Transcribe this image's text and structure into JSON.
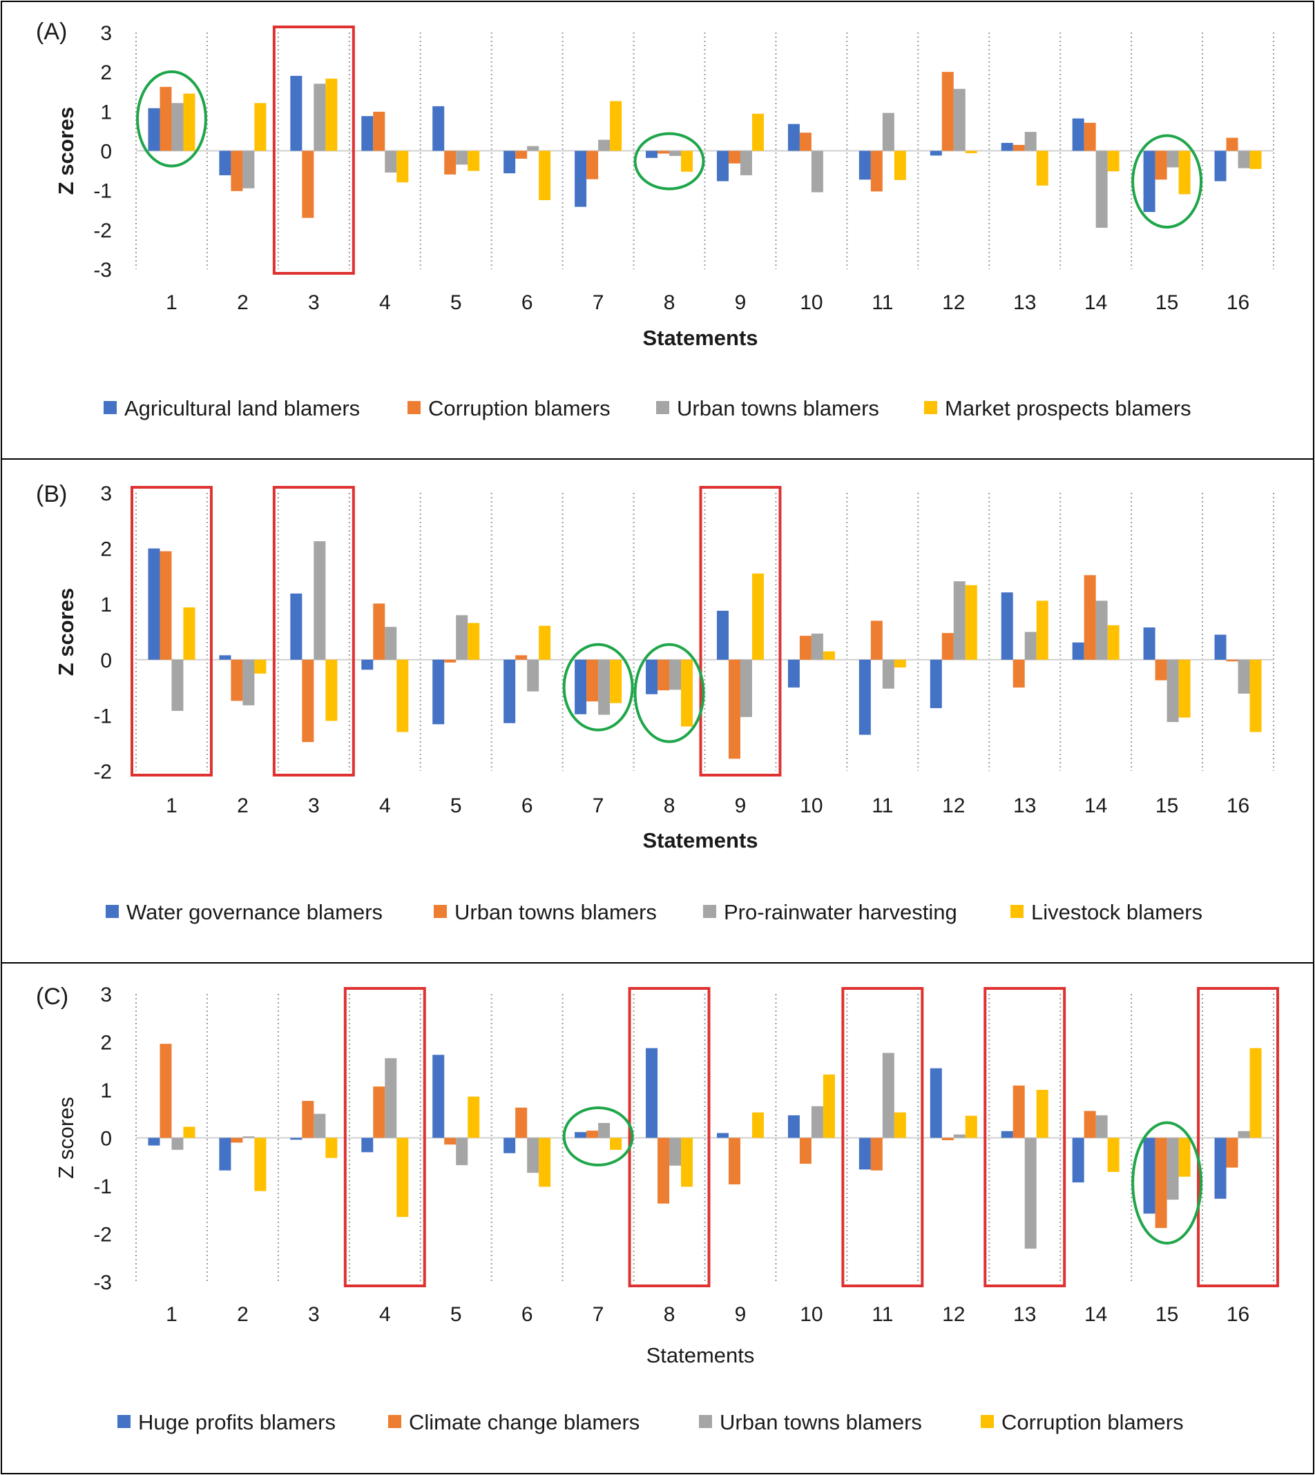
{
  "colors": {
    "series": [
      "#4472C4",
      "#ED7D31",
      "#A5A5A5",
      "#FFC000"
    ],
    "highlight_box": "#E03131",
    "highlight_circle": "#1FA64A",
    "separator": "#9a9a9a",
    "zero_line": "#d0d0d0"
  },
  "chart_data": [
    {
      "type": "bar",
      "panel_label": "(A)",
      "ylabel": "Z scores",
      "xlabel": "Statements",
      "ylim": [
        -3,
        3
      ],
      "yticks": [
        3,
        2,
        1,
        0,
        -1,
        -2,
        -3
      ],
      "categories": [
        "1",
        "2",
        "3",
        "4",
        "5",
        "6",
        "7",
        "8",
        "9",
        "10",
        "11",
        "12",
        "13",
        "14",
        "15",
        "16"
      ],
      "series": [
        {
          "name": "Agricultural land blamers",
          "values": [
            1.08,
            -0.62,
            1.9,
            0.88,
            1.13,
            -0.57,
            -1.42,
            -0.18,
            -0.77,
            0.68,
            -0.73,
            -0.12,
            0.2,
            0.82,
            -1.55,
            -0.77
          ]
        },
        {
          "name": "Corruption blamers",
          "values": [
            1.62,
            -1.02,
            -1.7,
            0.99,
            -0.6,
            -0.2,
            -0.72,
            -0.07,
            -0.32,
            0.46,
            -1.03,
            2.0,
            0.15,
            0.71,
            -0.73,
            0.33
          ]
        },
        {
          "name": "Urban towns blamers",
          "values": [
            1.21,
            -0.95,
            1.7,
            -0.55,
            -0.35,
            0.12,
            0.28,
            -0.13,
            -0.62,
            -1.05,
            0.96,
            1.57,
            0.48,
            -1.95,
            -0.42,
            -0.44
          ]
        },
        {
          "name": "Market prospects blamers",
          "values": [
            1.45,
            1.21,
            1.83,
            -0.8,
            -0.51,
            -1.25,
            1.26,
            -0.53,
            0.94,
            0.0,
            -0.74,
            -0.06,
            -0.88,
            -0.52,
            -1.1,
            -0.46
          ]
        }
      ],
      "boxes": [
        [
          3,
          3
        ]
      ],
      "circles": [
        1,
        8,
        15
      ]
    },
    {
      "type": "bar",
      "panel_label": "(B)",
      "ylabel": "Z scores",
      "xlabel": "Statements",
      "ylim": [
        -2,
        3
      ],
      "yticks": [
        3,
        2,
        1,
        0,
        -1,
        -2
      ],
      "categories": [
        "1",
        "2",
        "3",
        "4",
        "5",
        "6",
        "7",
        "8",
        "9",
        "10",
        "11",
        "12",
        "13",
        "14",
        "15",
        "16"
      ],
      "series": [
        {
          "name": "Water governance blamers",
          "values": [
            2.0,
            0.08,
            1.19,
            -0.18,
            -1.16,
            -1.14,
            -0.98,
            -0.62,
            0.88,
            -0.5,
            -1.35,
            -0.87,
            1.21,
            0.31,
            0.58,
            0.45
          ]
        },
        {
          "name": "Urban towns blamers",
          "values": [
            1.95,
            -0.74,
            -1.48,
            1.01,
            -0.05,
            0.08,
            -0.75,
            -0.55,
            -1.78,
            0.43,
            0.7,
            0.48,
            -0.5,
            1.52,
            -0.37,
            -0.03
          ]
        },
        {
          "name": "Pro-rainwater harvesting",
          "values": [
            -0.92,
            -0.82,
            2.13,
            0.59,
            0.8,
            -0.57,
            -0.99,
            -0.54,
            -1.03,
            0.47,
            -0.52,
            1.41,
            0.5,
            1.06,
            -1.12,
            -0.61
          ]
        },
        {
          "name": "Livestock blamers",
          "values": [
            0.94,
            -0.25,
            -1.1,
            -1.3,
            0.66,
            0.61,
            -0.78,
            -1.2,
            1.55,
            0.15,
            -0.14,
            1.34,
            1.06,
            0.62,
            -1.04,
            -1.3
          ]
        }
      ],
      "boxes": [
        [
          1,
          1
        ],
        [
          3,
          3
        ],
        [
          9,
          9
        ]
      ],
      "circles": [
        7,
        8
      ]
    },
    {
      "type": "bar",
      "panel_label": "(C)",
      "ylabel": "Z scores",
      "xlabel": "Statements",
      "ylim": [
        -3,
        3
      ],
      "yticks": [
        3,
        2,
        1,
        0,
        -1,
        -2,
        -3
      ],
      "categories": [
        "1",
        "2",
        "3",
        "4",
        "5",
        "6",
        "7",
        "8",
        "9",
        "10",
        "11",
        "12",
        "13",
        "14",
        "15",
        "16"
      ],
      "series": [
        {
          "name": "Huge profits blamers",
          "values": [
            -0.16,
            -0.68,
            -0.04,
            -0.3,
            1.73,
            -0.32,
            0.12,
            1.87,
            0.1,
            0.47,
            -0.66,
            1.45,
            0.14,
            -0.93,
            -1.58,
            -1.27
          ]
        },
        {
          "name": "Climate change blamers",
          "values": [
            1.96,
            -0.1,
            0.77,
            1.07,
            -0.14,
            0.63,
            0.15,
            -1.37,
            -0.97,
            -0.54,
            -0.68,
            -0.05,
            1.09,
            0.56,
            -1.88,
            -0.62
          ]
        },
        {
          "name": "Urban towns blamers",
          "values": [
            -0.25,
            0.03,
            0.5,
            1.66,
            -0.57,
            -0.73,
            0.31,
            -0.58,
            0.0,
            0.66,
            1.77,
            0.07,
            -2.31,
            0.47,
            -1.29,
            0.14
          ]
        },
        {
          "name": "Corruption blamers",
          "values": [
            0.23,
            -1.11,
            -0.42,
            -1.65,
            0.86,
            -1.02,
            -0.25,
            -1.02,
            0.53,
            1.32,
            0.53,
            0.46,
            1.0,
            -0.71,
            -0.81,
            1.87
          ]
        }
      ],
      "boxes": [
        [
          4,
          4
        ],
        [
          8,
          8
        ],
        [
          11,
          11
        ],
        [
          13,
          13
        ],
        [
          16,
          16
        ]
      ],
      "circles": [
        7,
        15
      ]
    }
  ]
}
